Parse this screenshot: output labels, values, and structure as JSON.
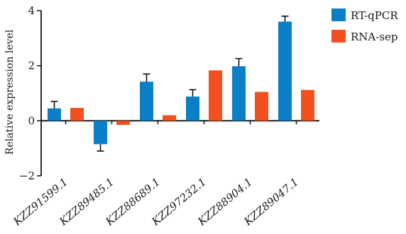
{
  "colors": {
    "rt_qpcr": "#0a7ec6",
    "rna_seq": "#f2501f",
    "axis": "#111111"
  },
  "chart_data": {
    "type": "bar",
    "categories": [
      "KZZ91599.1",
      "KZZ89485.1",
      "KZZ88689.1",
      "KZZ97232.1",
      "KZZ88904.1",
      "KZZ89047.1"
    ],
    "series": [
      {
        "name": "RT-qPCR",
        "values": [
          0.45,
          -0.85,
          1.42,
          0.88,
          1.98,
          3.6
        ],
        "error": [
          0.25,
          0.25,
          0.28,
          0.25,
          0.28,
          0.2
        ]
      },
      {
        "name": "RNA-sep",
        "values": [
          0.47,
          -0.15,
          0.2,
          1.83,
          1.05,
          1.12
        ]
      }
    ],
    "ylabel": "Relative expression level",
    "xlabel": "",
    "title": "",
    "ylim": [
      -2,
      4
    ],
    "yticks": [
      -2,
      0,
      2,
      4
    ],
    "ytick_labels": [
      "−2",
      "0",
      "2",
      "4"
    ],
    "grid": false,
    "legend_position": "top-right"
  }
}
